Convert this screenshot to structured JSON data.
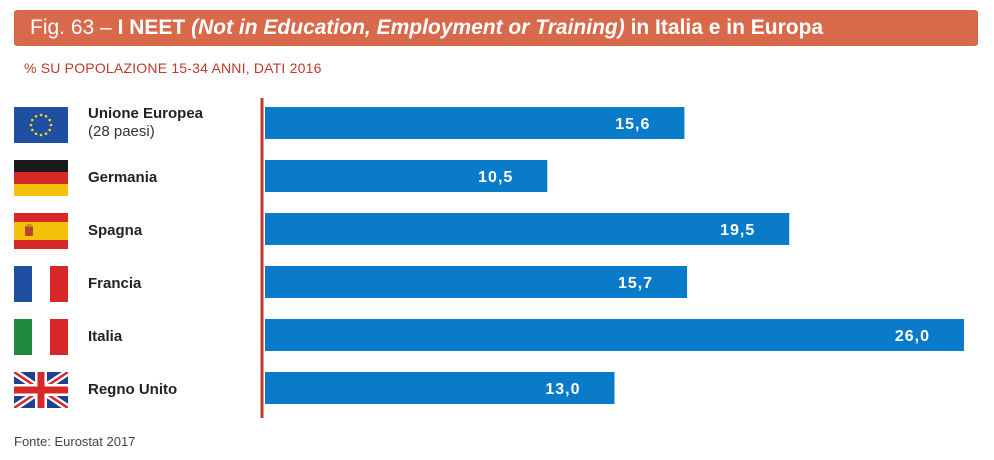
{
  "header": {
    "fig": "Fig. 63 –",
    "title_bold": "I NEET",
    "title_italic": "(Not in Education, Employment or Training)",
    "title_rest": "in Italia e in Europa"
  },
  "subtitle": "% SU POPOLAZIONE 15-34 ANNI, DATI 2016",
  "source": "Fonte: Eurostat 2017",
  "colors": {
    "bar": "#0a7bc8",
    "axis": "#c0392b",
    "header": "#d8694a"
  },
  "chart_data": {
    "type": "bar",
    "orientation": "horizontal",
    "categories": [
      "Unione Europea",
      "Germania",
      "Spagna",
      "Francia",
      "Italia",
      "Regno Unito"
    ],
    "category_sublabels": [
      "(28 paesi)",
      "",
      "",
      "",
      "",
      ""
    ],
    "flags": [
      "eu-flag-icon",
      "germany-flag-icon",
      "spain-flag-icon",
      "france-flag-icon",
      "italy-flag-icon",
      "uk-flag-icon"
    ],
    "values": [
      15.6,
      10.5,
      19.5,
      15.7,
      26.0,
      13.0
    ],
    "value_labels": [
      "15,6",
      "10,5",
      "19,5",
      "15,7",
      "26,0",
      "13,0"
    ],
    "xlim": [
      0,
      26
    ]
  }
}
